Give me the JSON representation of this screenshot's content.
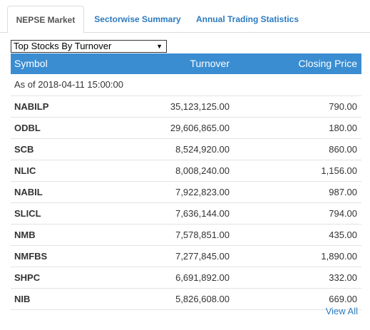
{
  "tabs": [
    {
      "label": "NEPSE Market",
      "active": true
    },
    {
      "label": "Sectorwise Summary",
      "active": false
    },
    {
      "label": "Annual Trading Statistics",
      "active": false
    }
  ],
  "select": {
    "selected": "Top Stocks By Turnover"
  },
  "table": {
    "headers": {
      "symbol": "Symbol",
      "turnover": "Turnover",
      "closing": "Closing Price"
    },
    "as_of": "As of 2018-04-11 15:00:00",
    "rows": [
      {
        "symbol": "NABILP",
        "turnover": "35,123,125.00",
        "closing": "790.00"
      },
      {
        "symbol": "ODBL",
        "turnover": "29,606,865.00",
        "closing": "180.00"
      },
      {
        "symbol": "SCB",
        "turnover": "8,524,920.00",
        "closing": "860.00"
      },
      {
        "symbol": "NLIC",
        "turnover": "8,008,240.00",
        "closing": "1,156.00"
      },
      {
        "symbol": "NABIL",
        "turnover": "7,922,823.00",
        "closing": "987.00"
      },
      {
        "symbol": "SLICL",
        "turnover": "7,636,144.00",
        "closing": "794.00"
      },
      {
        "symbol": "NMB",
        "turnover": "7,578,851.00",
        "closing": "435.00"
      },
      {
        "symbol": "NMFBS",
        "turnover": "7,277,845.00",
        "closing": "1,890.00"
      },
      {
        "symbol": "SHPC",
        "turnover": "6,691,892.00",
        "closing": "332.00"
      },
      {
        "symbol": "NIB",
        "turnover": "5,826,608.00",
        "closing": "669.00"
      }
    ]
  },
  "view_all": "View All",
  "colors": {
    "header_bg": "#3a8dd1",
    "link": "#2b7bbf"
  }
}
